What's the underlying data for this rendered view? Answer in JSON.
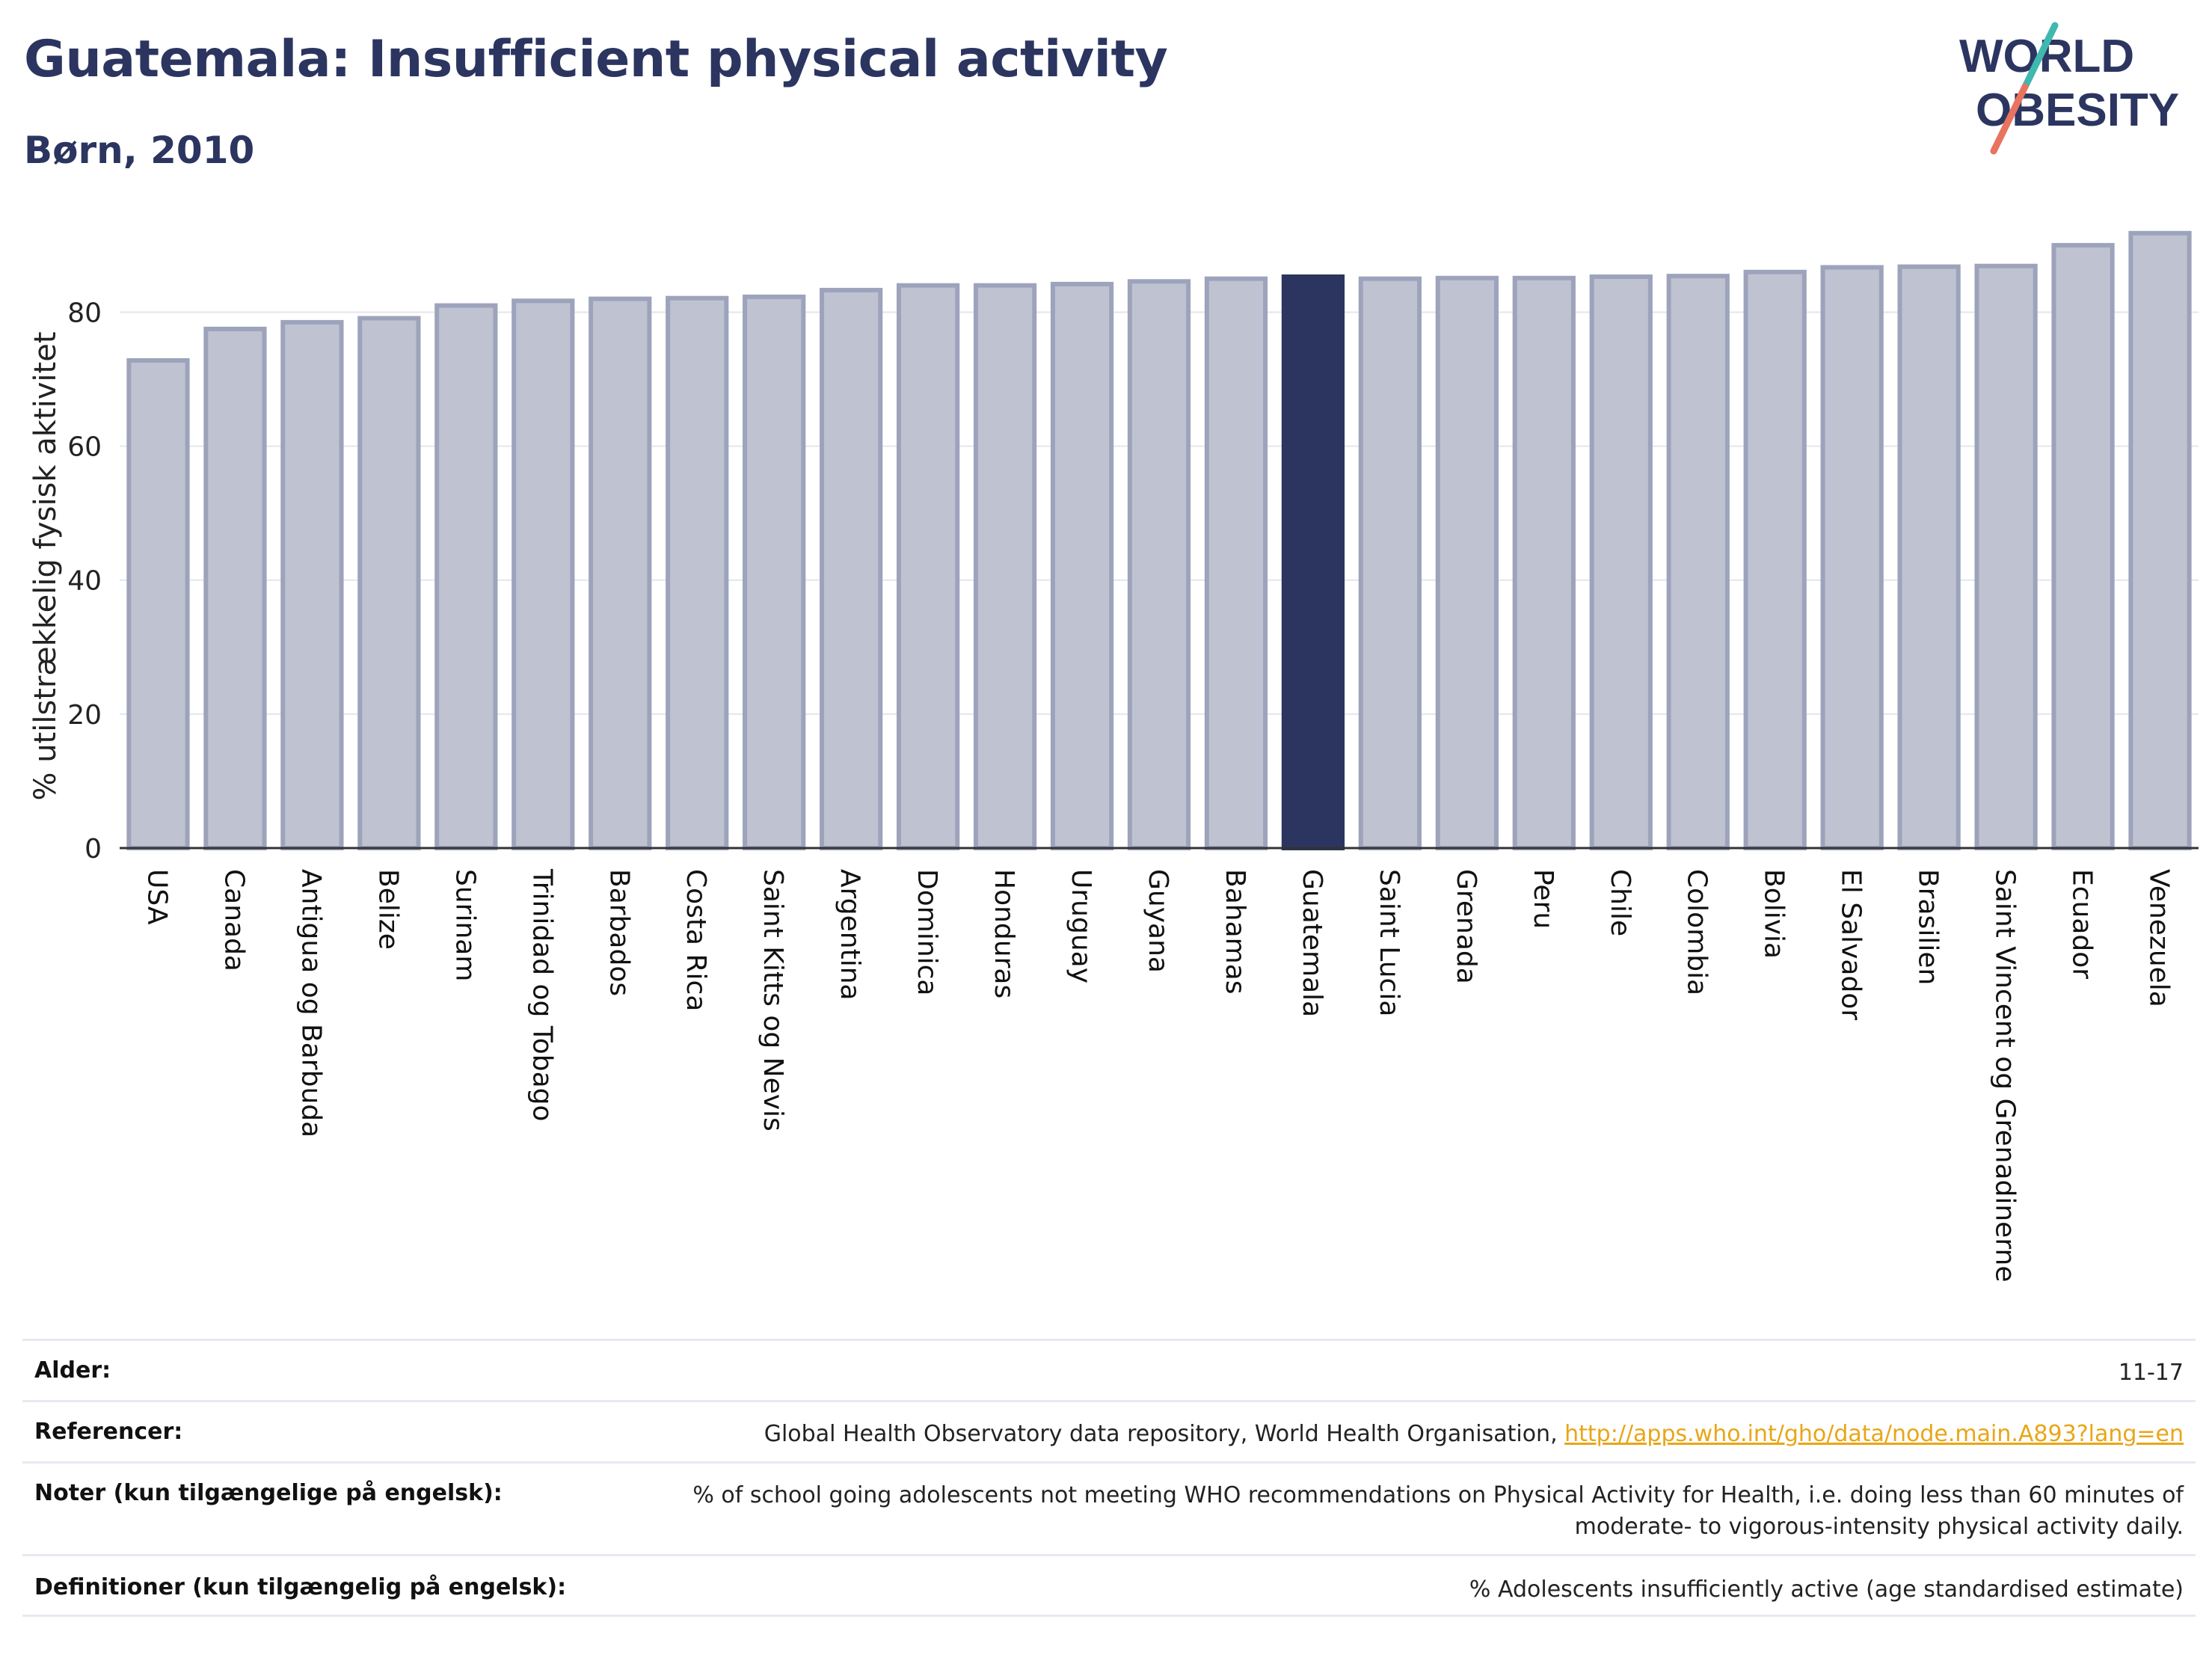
{
  "header": {
    "title": "Guatemala: Insufficient physical activity",
    "subtitle": "Børn, 2010",
    "logo_line1": "WORLD",
    "logo_line2": "OBESITY"
  },
  "colors": {
    "title": "#2b3560",
    "bar": "#bfc2d0",
    "bar_stroke": "#9ea3bc",
    "highlight": "#2b3560",
    "link": "#e8a617",
    "logo_teal": "#3fb8b0",
    "logo_coral": "#e8735f"
  },
  "chart_data": {
    "type": "bar",
    "title": "Guatemala: Insufficient physical activity",
    "subtitle": "Børn, 2010",
    "ylabel": "% utilstrækkelig fysisk aktivitet",
    "xlabel": "",
    "ylim": [
      0,
      92
    ],
    "yticks": [
      0,
      20,
      40,
      60,
      80
    ],
    "grid": true,
    "highlight": "Guatemala",
    "categories": [
      "USA",
      "Canada",
      "Antigua og Barbuda",
      "Belize",
      "Surinam",
      "Trinidad og Tobago",
      "Barbados",
      "Costa Rica",
      "Saint Kitts og Nevis",
      "Argentina",
      "Dominica",
      "Honduras",
      "Uruguay",
      "Guyana",
      "Bahamas",
      "Guatemala",
      "Saint Lucia",
      "Grenada",
      "Peru",
      "Chile",
      "Colombia",
      "Bolivia",
      "El Salvador",
      "Brasilien",
      "Saint Vincent og Grenadinerne",
      "Ecuador",
      "Venezuela"
    ],
    "values": [
      72.8,
      77.5,
      78.5,
      79.1,
      81.0,
      81.7,
      82.0,
      82.1,
      82.3,
      83.3,
      84.0,
      84.0,
      84.2,
      84.6,
      85.0,
      85.3,
      85.0,
      85.1,
      85.1,
      85.3,
      85.4,
      86.0,
      86.7,
      86.8,
      86.9,
      90.0,
      91.8
    ]
  },
  "footer": {
    "rows": [
      {
        "label": "Alder:",
        "value": "11-17"
      },
      {
        "label": "Referencer:",
        "value": "Global Health Observatory data repository, World Health Organisation, ",
        "link": "http://apps.who.int/gho/data/node.main.A893?lang=en"
      },
      {
        "label": "Noter (kun tilgængelige på engelsk):",
        "value_line1": "% of school going adolescents not meeting WHO recommendations on Physical Activity for Health, i.e. doing less than 60 minutes of",
        "value_line2": "moderate- to vigorous-intensity physical activity daily."
      },
      {
        "label": "Definitioner (kun tilgængelig på engelsk):",
        "value": "% Adolescents insufficiently active (age standardised estimate)"
      }
    ]
  }
}
